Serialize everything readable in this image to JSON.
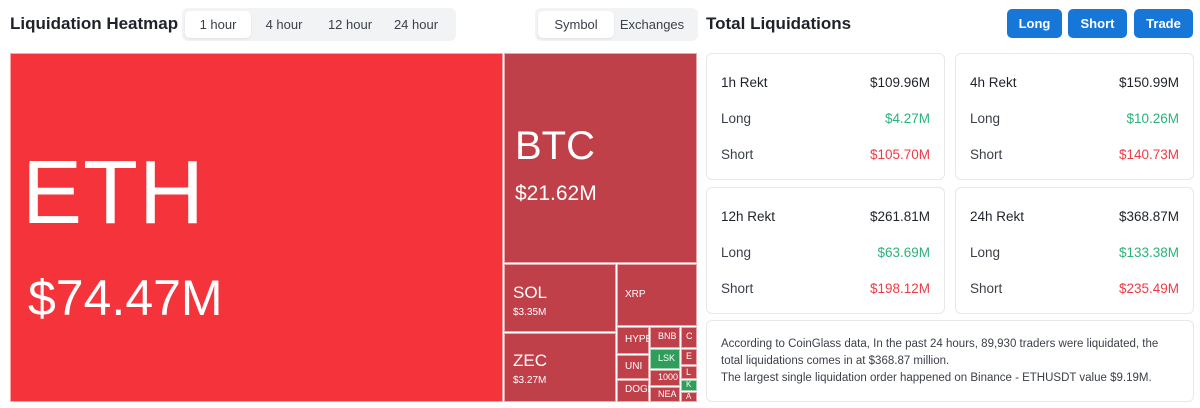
{
  "heatmap": {
    "title": "Liquidation Heatmap",
    "time_options": [
      "1 hour",
      "4 hour",
      "12 hour",
      "24 hour"
    ],
    "selected_time": "1 hour",
    "type_options": [
      "Symbol",
      "Exchanges"
    ],
    "selected_type": "Symbol",
    "cells": {
      "eth": {
        "symbol": "ETH",
        "value": "$74.47M",
        "color": "#f5333a"
      },
      "btc": {
        "symbol": "BTC",
        "value": "$21.62M",
        "color": "#c0404a"
      },
      "sol": {
        "symbol": "SOL",
        "value": "$3.35M",
        "color": "#c0404a"
      },
      "zec": {
        "symbol": "ZEC",
        "value": "$3.27M",
        "color": "#c0404a"
      },
      "xrp": {
        "symbol": "XRP"
      },
      "hype": {
        "symbol": "HYPE"
      },
      "uni": {
        "symbol": "UNI"
      },
      "doge": {
        "symbol": "DOGE"
      },
      "bnb": {
        "symbol": "BNB"
      },
      "lsk": {
        "symbol": "LSK",
        "color": "#2f9e5b"
      },
      "k1000": {
        "symbol": "1000"
      },
      "nea": {
        "symbol": "NEA"
      },
      "s1": {
        "symbol": "C"
      },
      "s2": {
        "symbol": "E"
      },
      "s3": {
        "symbol": "L"
      },
      "s4": {
        "symbol": "K"
      },
      "s5": {
        "symbol": "A"
      }
    }
  },
  "totals": {
    "title": "Total Liquidations",
    "buttons": {
      "long": "Long",
      "short": "Short",
      "trade": "Trade"
    },
    "accent": "#1677d8",
    "long_color": "#2bb27a",
    "short_color": "#ee3b46",
    "cards": {
      "h1": {
        "label": "1h Rekt",
        "total": "$109.96M",
        "long_label": "Long",
        "long": "$4.27M",
        "short_label": "Short",
        "short": "$105.70M"
      },
      "h4": {
        "label": "4h Rekt",
        "total": "$150.99M",
        "long_label": "Long",
        "long": "$10.26M",
        "short_label": "Short",
        "short": "$140.73M"
      },
      "h12": {
        "label": "12h Rekt",
        "total": "$261.81M",
        "long_label": "Long",
        "long": "$63.69M",
        "short_label": "Short",
        "short": "$198.12M"
      },
      "h24": {
        "label": "24h Rekt",
        "total": "$368.87M",
        "long_label": "Long",
        "long": "$133.38M",
        "short_label": "Short",
        "short": "$235.49M"
      }
    },
    "summary": {
      "line1": "According to CoinGlass data, In the past 24 hours, 89,930 traders were liquidated, the",
      "line2": "total liquidations comes in at $368.87 million.",
      "line3": "The largest single liquidation order happened on Binance - ETHUSDT value $9.19M."
    }
  }
}
